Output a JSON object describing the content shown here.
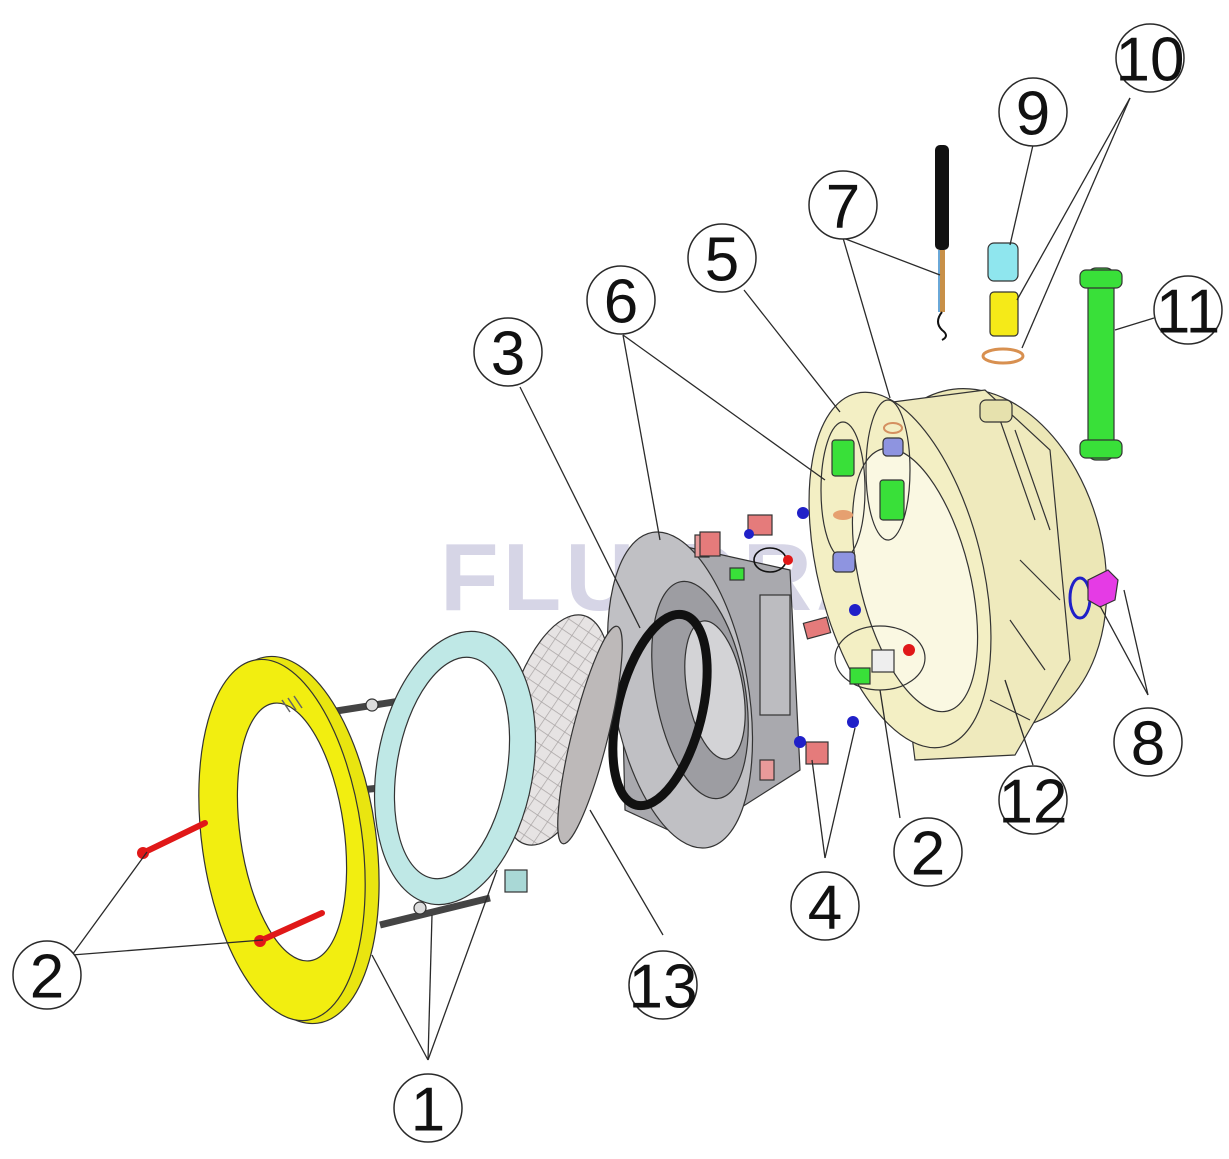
{
  "watermark": "FLUIDRA",
  "callouts": {
    "c1": "1",
    "c2_left": "2",
    "c2_right": "2",
    "c3": "3",
    "c4": "4",
    "c5": "5",
    "c6": "6",
    "c7": "7",
    "c8": "8",
    "c9": "9",
    "c10": "10",
    "c11": "11",
    "c12": "12",
    "c13": "13"
  },
  "colors": {
    "yellow_ring": "#f2ee10",
    "cyan_ring": "#bfe8e6",
    "red_screw": "#e01818",
    "green_part": "#39e039",
    "magenta_plug": "#e53be5",
    "cream_housing": "#f3efc4",
    "grey_niche": "#b8b8bc",
    "blue_oring": "#2020c8"
  }
}
